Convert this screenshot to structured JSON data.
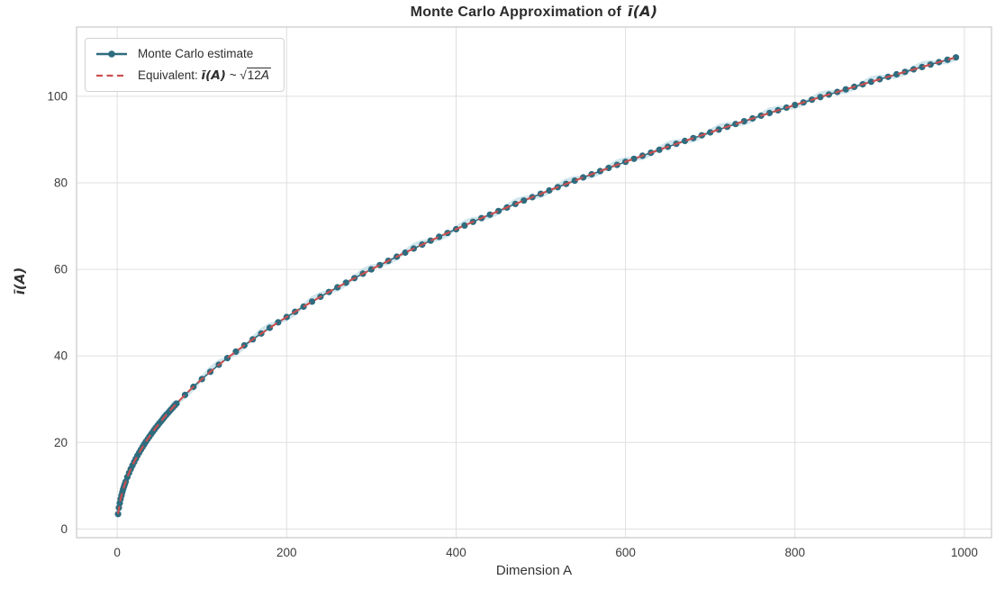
{
  "figure": {
    "title_prefix": "Monte Carlo Approximation of",
    "title_math": "ī(A)",
    "xlabel": "Dimension A",
    "ylabel": "ī(A)"
  },
  "legend": {
    "position": "upper left",
    "items": [
      {
        "label": "Monte Carlo estimate",
        "marker": "solid-line-with-dot",
        "color": "#2e6c7f"
      },
      {
        "prefix": "Equivalent: ",
        "math": "ī(A)",
        "tilde": " ~ ",
        "sqrt_sign": "√",
        "radicand_num": "12",
        "radicand_var": "A",
        "marker": "dashed-line",
        "color": "#cc4f4f"
      }
    ]
  },
  "chart_data": {
    "type": "line",
    "title": "Monte Carlo Approximation of ī(A)",
    "xlabel": "Dimension A",
    "ylabel": "ī(A)",
    "xlim": [
      -48,
      1032
    ],
    "ylim": [
      -2,
      116
    ],
    "xticks": [
      0,
      200,
      400,
      600,
      800,
      1000
    ],
    "yticks": [
      0,
      20,
      40,
      60,
      80,
      100
    ],
    "grid": true,
    "legend_position": "upper left",
    "colors": {
      "mc": "#2e6c7f",
      "equiv": "#cc4f4f",
      "halo": "#b9d8e2",
      "grid": "#dfdfdf",
      "spine": "#c9c9c9",
      "tick_text": "#3c3c3c"
    },
    "series": [
      {
        "name": "Monte Carlo estimate",
        "style": "line+markers",
        "color": "#2e6c7f",
        "x": [
          1,
          2,
          3,
          4,
          5,
          6,
          7,
          8,
          9,
          10,
          12,
          14,
          16,
          18,
          20,
          22,
          24,
          26,
          28,
          30,
          32,
          34,
          36,
          38,
          40,
          42,
          44,
          46,
          48,
          50,
          52,
          54,
          56,
          58,
          60,
          62,
          64,
          66,
          68,
          70,
          80,
          90,
          100,
          110,
          120,
          130,
          140,
          150,
          160,
          170,
          180,
          190,
          200,
          210,
          220,
          230,
          240,
          250,
          260,
          270,
          280,
          290,
          300,
          310,
          320,
          330,
          340,
          350,
          360,
          370,
          380,
          390,
          400,
          410,
          420,
          430,
          440,
          450,
          460,
          470,
          480,
          490,
          500,
          510,
          520,
          530,
          540,
          550,
          560,
          570,
          580,
          590,
          600,
          610,
          620,
          630,
          640,
          650,
          660,
          670,
          680,
          690,
          700,
          710,
          720,
          730,
          740,
          750,
          760,
          770,
          780,
          790,
          800,
          810,
          820,
          830,
          840,
          850,
          860,
          870,
          880,
          890,
          900,
          910,
          920,
          930,
          940,
          950,
          960,
          970,
          980,
          990
        ],
        "y": [
          3.46,
          4.9,
          6.0,
          6.93,
          7.75,
          8.49,
          9.17,
          9.8,
          10.39,
          10.95,
          12.0,
          12.96,
          13.86,
          14.7,
          15.49,
          16.25,
          16.97,
          17.66,
          18.33,
          18.97,
          19.6,
          20.2,
          20.78,
          21.35,
          21.91,
          22.45,
          22.98,
          23.49,
          24.0,
          24.49,
          24.98,
          25.46,
          25.92,
          26.38,
          26.83,
          27.28,
          27.71,
          28.14,
          28.57,
          28.98,
          30.98,
          32.86,
          34.64,
          36.33,
          37.95,
          39.5,
          40.99,
          42.43,
          43.82,
          45.17,
          46.48,
          47.75,
          48.99,
          50.2,
          51.38,
          52.54,
          53.67,
          54.77,
          55.86,
          56.92,
          57.97,
          58.99,
          60.0,
          60.99,
          61.97,
          62.93,
          63.87,
          64.81,
          65.73,
          66.63,
          67.53,
          68.41,
          69.28,
          70.14,
          70.99,
          71.83,
          72.66,
          73.48,
          74.3,
          75.1,
          75.89,
          76.68,
          77.46,
          78.23,
          78.99,
          79.75,
          80.5,
          81.24,
          81.98,
          82.7,
          83.43,
          84.14,
          84.85,
          85.56,
          86.26,
          86.95,
          87.64,
          88.32,
          89.0,
          89.67,
          90.33,
          90.99,
          91.65,
          92.3,
          92.95,
          93.59,
          94.23,
          94.87,
          95.5,
          96.12,
          96.75,
          97.37,
          97.98,
          98.59,
          99.2,
          99.8,
          100.4,
          101.0,
          101.59,
          102.18,
          102.76,
          103.35,
          103.92,
          104.5,
          105.07,
          105.64,
          106.21,
          106.77,
          107.33,
          107.89,
          108.44,
          108.99
        ]
      },
      {
        "name": "Equivalent: ī(A) ~ √12A",
        "style": "dashed",
        "color": "#cc4f4f",
        "formula": "sqrt(12*A)",
        "coefficient": 12,
        "x_range": [
          1,
          990
        ]
      }
    ]
  }
}
